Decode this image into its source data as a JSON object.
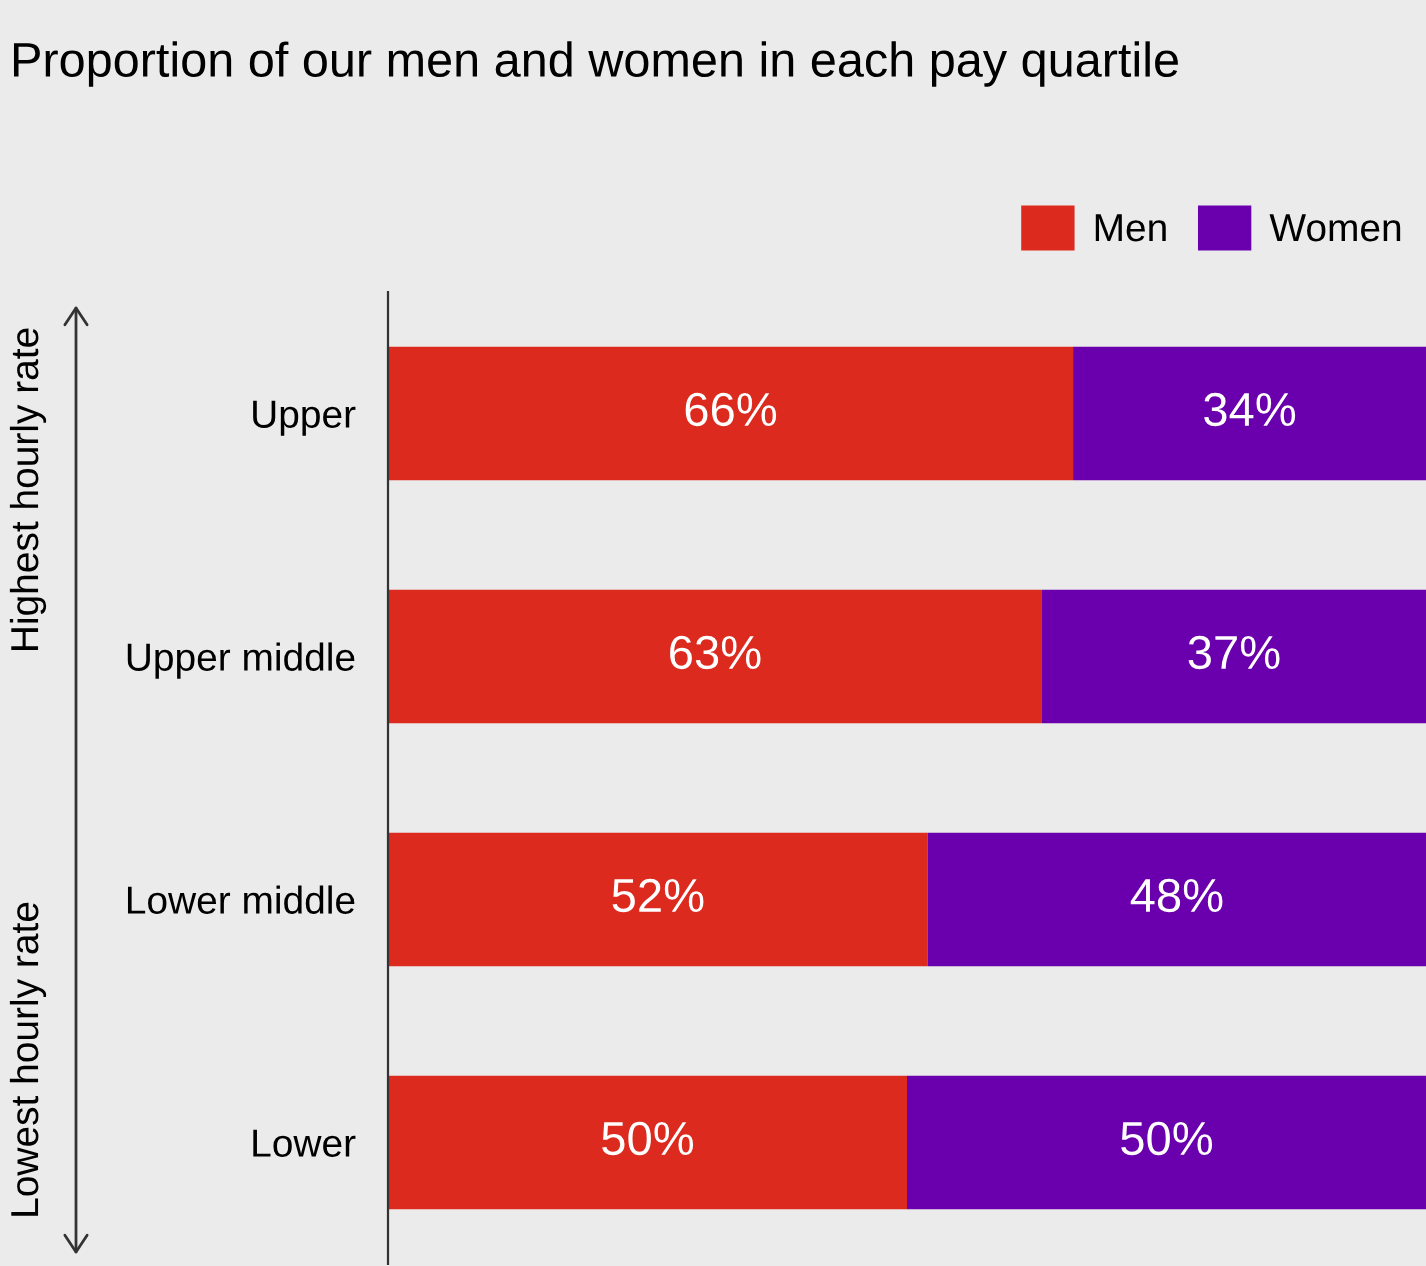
{
  "chart_data": {
    "type": "bar",
    "orientation": "horizontal",
    "stacked": true,
    "title": "Proportion of our men and women in each pay quartile",
    "categories": [
      "Upper",
      "Upper middle",
      "Lower middle",
      "Lower"
    ],
    "series": [
      {
        "name": "Men",
        "color": "#dc2a1e",
        "values": [
          66,
          63,
          52,
          50
        ],
        "value_labels": [
          "66%",
          "63%",
          "52%",
          "50%"
        ]
      },
      {
        "name": "Women",
        "color": "#6a00ad",
        "values": [
          34,
          37,
          48,
          50
        ],
        "value_labels": [
          "34%",
          "37%",
          "48%",
          "50%"
        ]
      }
    ],
    "xlim": [
      0,
      100
    ],
    "tick_labels": "y",
    "legend": "top right",
    "grid": false,
    "annotations": [
      "Highest hourly rate",
      "Lowest hourly rate"
    ]
  }
}
